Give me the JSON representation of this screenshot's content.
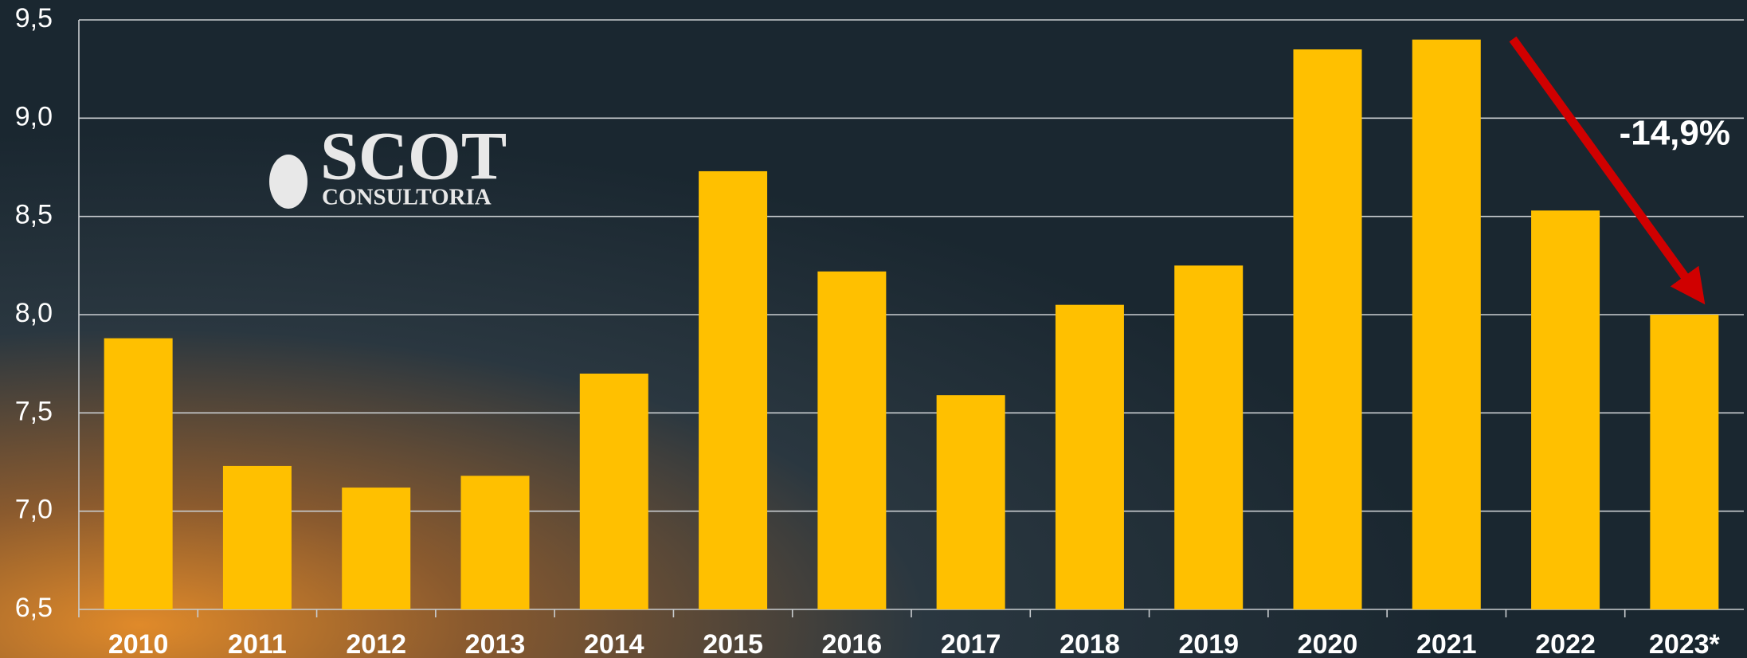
{
  "chart_data": {
    "type": "bar",
    "categories": [
      "2010",
      "2011",
      "2012",
      "2013",
      "2014",
      "2015",
      "2016",
      "2017",
      "2018",
      "2019",
      "2020",
      "2021",
      "2022",
      "2023*"
    ],
    "values": [
      7.88,
      7.23,
      7.12,
      7.18,
      7.7,
      8.73,
      8.22,
      7.59,
      8.05,
      8.25,
      9.35,
      9.4,
      8.53,
      8.0
    ],
    "color": "#ffc000",
    "ylim": [
      6.5,
      9.5
    ],
    "yticks": [
      {
        "value": 6.5,
        "label": "6,5"
      },
      {
        "value": 7.0,
        "label": "7,0"
      },
      {
        "value": 7.5,
        "label": "7,5"
      },
      {
        "value": 8.0,
        "label": "8,0"
      },
      {
        "value": 8.5,
        "label": "8,5"
      },
      {
        "value": 9.0,
        "label": "9,0"
      },
      {
        "value": 9.5,
        "label": "9,5"
      }
    ],
    "grid": true,
    "annotation": "-14,9%",
    "logo": {
      "name": "SCOT",
      "subtitle": "CONSULTORIA"
    }
  }
}
